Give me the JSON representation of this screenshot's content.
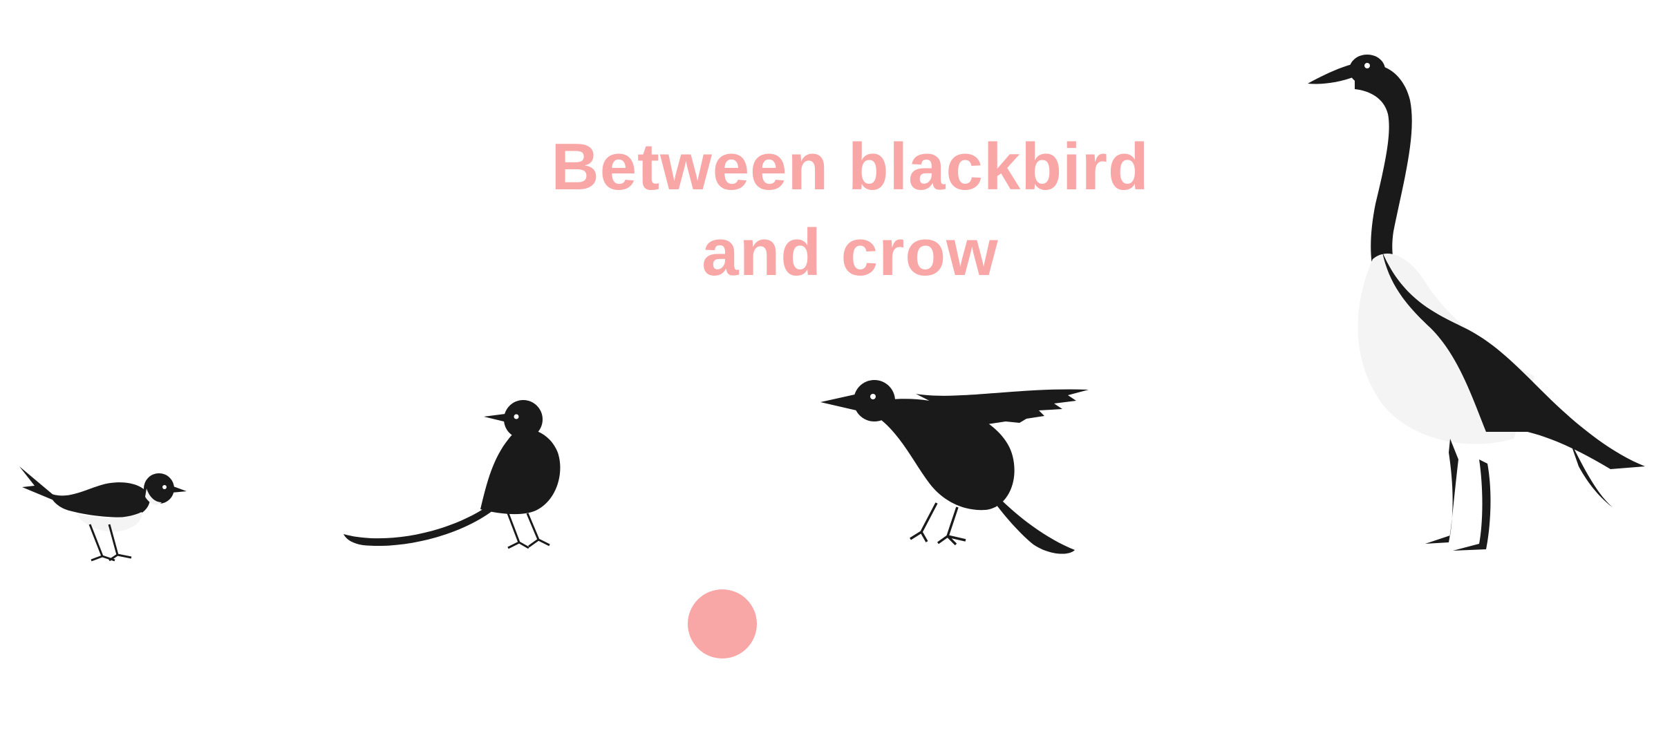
{
  "title": {
    "line1": "Between blackbird",
    "line2": "and crow"
  },
  "colors": {
    "title": "#f9a6a6",
    "marker": "#f9a6a6",
    "ink": "#1a1a1a",
    "belly": "#f4f4f4",
    "background": "#ffffff"
  },
  "birds": [
    {
      "icon": "magpie-icon"
    },
    {
      "icon": "long-tailed-bird-icon"
    },
    {
      "icon": "crow-icon"
    },
    {
      "icon": "goose-icon"
    }
  ],
  "marker_icon": "selection-dot"
}
